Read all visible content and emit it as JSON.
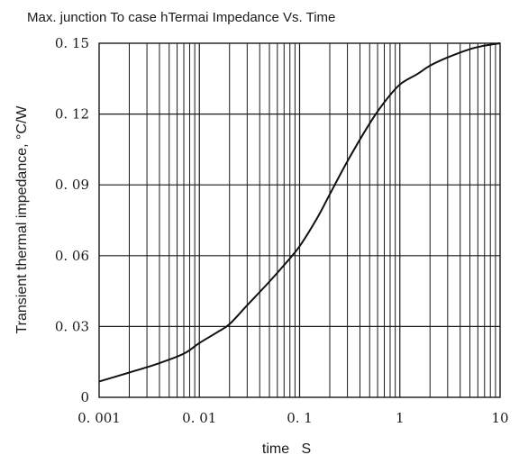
{
  "chart_data": {
    "type": "line",
    "title": "Max.   junction  To  case hTermai  Impedance  Vs. Time",
    "xlabel": "time   S",
    "ylabel": "Transient thermal impedance, °C/W",
    "xscale": "log",
    "xlim": [
      0.001,
      10
    ],
    "ylim": [
      0,
      0.15
    ],
    "grid": true,
    "x_tick_labels": [
      "0. 001",
      "0. 01",
      "0. 1",
      "1",
      "10"
    ],
    "y_tick_labels": [
      "0",
      "0. 03",
      "0. 06",
      "0. 09",
      "0. 12",
      "0. 15"
    ],
    "series": [
      {
        "x": [
          0.001,
          0.002,
          0.004,
          0.007,
          0.01,
          0.015,
          0.02,
          0.03,
          0.05,
          0.07,
          0.1,
          0.15,
          0.2,
          0.3,
          0.5,
          0.7,
          1,
          1.5,
          2,
          3,
          5,
          7,
          10
        ],
        "y": [
          0.0067,
          0.0105,
          0.0145,
          0.0185,
          0.023,
          0.0275,
          0.031,
          0.039,
          0.049,
          0.056,
          0.064,
          0.076,
          0.086,
          0.1,
          0.116,
          0.125,
          0.1325,
          0.137,
          0.1405,
          0.144,
          0.1475,
          0.149,
          0.15
        ]
      }
    ]
  }
}
